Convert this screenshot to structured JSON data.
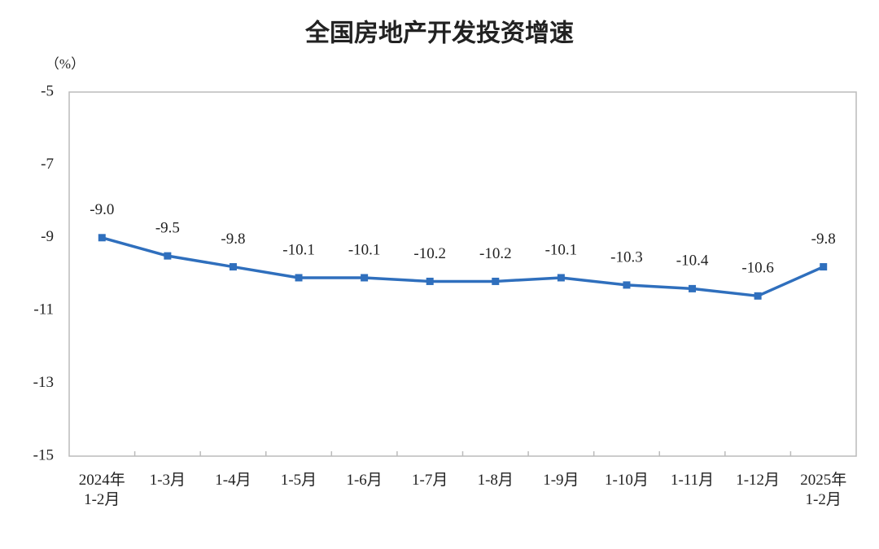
{
  "chart_data": {
    "type": "line",
    "title": "全国房地产开发投资增速",
    "unit_label": "（%）",
    "categories": [
      "2024年\n1-2月",
      "1-3月",
      "1-4月",
      "1-5月",
      "1-6月",
      "1-7月",
      "1-8月",
      "1-9月",
      "1-10月",
      "1-11月",
      "1-12月",
      "2025年\n1-2月"
    ],
    "series": [
      {
        "name": "全国房地产开发投资增速",
        "color": "#2f6fbd",
        "values": [
          -9.0,
          -9.5,
          -9.8,
          -10.1,
          -10.1,
          -10.2,
          -10.2,
          -10.1,
          -10.3,
          -10.4,
          -10.6,
          -9.8
        ],
        "value_labels": [
          "-9.0",
          "-9.5",
          "-9.8",
          "-10.1",
          "-10.1",
          "-10.2",
          "-10.2",
          "-10.1",
          "-10.3",
          "-10.4",
          "-10.6",
          "-9.8"
        ]
      }
    ],
    "ylim": [
      -15,
      -5
    ],
    "yticks": [
      -5,
      -7,
      -9,
      -11,
      -13,
      -15
    ],
    "grid": false
  }
}
